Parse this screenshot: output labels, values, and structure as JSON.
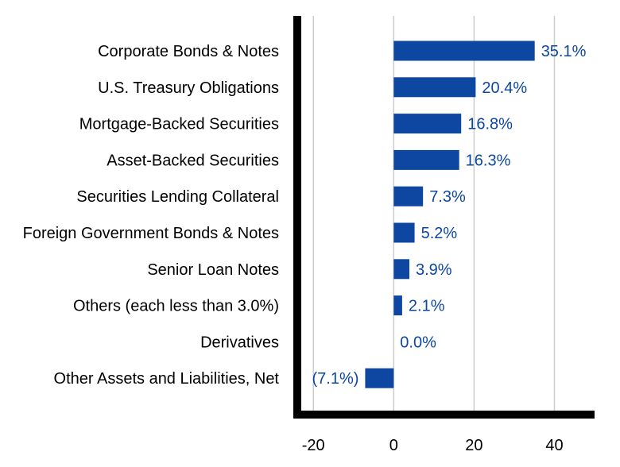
{
  "chart_data": {
    "type": "bar",
    "orientation": "horizontal",
    "categories": [
      "Corporate Bonds & Notes",
      "U.S. Treasury Obligations",
      "Mortgage-Backed Securities",
      "Asset-Backed Securities",
      "Securities Lending Collateral",
      "Foreign Government Bonds & Notes",
      "Senior Loan Notes",
      "Others (each less than 3.0%)",
      "Derivatives",
      "Other Assets and Liabilities, Net"
    ],
    "values": [
      35.1,
      20.4,
      16.8,
      16.3,
      7.3,
      5.2,
      3.9,
      2.1,
      0.0,
      -7.1
    ],
    "value_labels": [
      "35.1%",
      "20.4%",
      "16.8%",
      "16.3%",
      "7.3%",
      "5.2%",
      "3.9%",
      "2.1%",
      "0.0%",
      "(7.1%)"
    ],
    "xlim": [
      -24,
      50
    ],
    "x_ticks": [
      -20,
      0,
      20,
      40
    ],
    "x_tick_labels": [
      "-20",
      "0",
      "20",
      "40"
    ],
    "grid": "vertical",
    "colors": {
      "bar": "#0d47a1",
      "value_label": "#0d47a1",
      "grid": "#cccccc",
      "axis": "#000000",
      "text": "#000000"
    }
  }
}
